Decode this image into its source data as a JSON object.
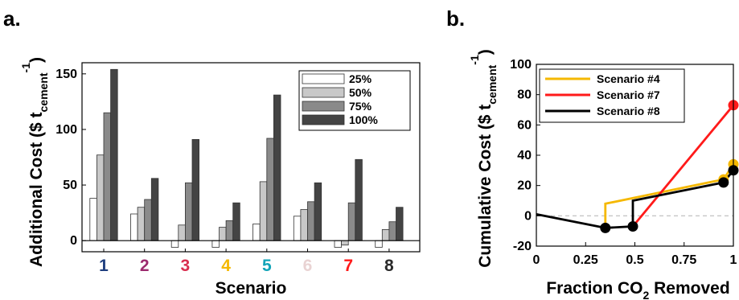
{
  "panels": {
    "a": {
      "letter": "a."
    },
    "b": {
      "letter": "b."
    }
  },
  "chart_data": [
    {
      "type": "bar",
      "panel": "a.",
      "ylabel": "Additional Cost ($ t",
      "ylabel_sub": "cement",
      "ylabel_sup": "-1",
      "ylabel_close": ")",
      "xlabel": "Scenario",
      "ylim": [
        -10,
        160
      ],
      "yticks": [
        0,
        50,
        100,
        150
      ],
      "grid": false,
      "legend_placement": "top-right",
      "categories": [
        "1",
        "2",
        "3",
        "4",
        "5",
        "6",
        "7",
        "8"
      ],
      "category_colors": [
        "#1f3f7f",
        "#9c2a6e",
        "#d92d4e",
        "#f5b800",
        "#12a4b8",
        "#e9d3d3",
        "#ff1a1a",
        "#2a2a2a"
      ],
      "series": [
        {
          "name": "25%",
          "color": "#ffffff",
          "values": [
            38,
            24,
            -6,
            -6,
            15,
            22,
            -6,
            -6
          ]
        },
        {
          "name": "50%",
          "color": "#c8c8c8",
          "values": [
            77,
            30,
            14,
            12,
            53,
            28,
            -4,
            10
          ]
        },
        {
          "name": "75%",
          "color": "#8a8a8a",
          "values": [
            115,
            37,
            52,
            18,
            92,
            35,
            34,
            17
          ]
        },
        {
          "name": "100%",
          "color": "#444444",
          "values": [
            154,
            56,
            91,
            34,
            131,
            52,
            73,
            30
          ]
        }
      ]
    },
    {
      "type": "line",
      "panel": "b.",
      "ylabel": "Cumulative Cost ($ t",
      "ylabel_sub": "cement",
      "ylabel_sup": "-1",
      "ylabel_close": ")",
      "xlabel": "Fraction CO",
      "xlabel_sub": "2",
      "xlabel_tail": " Removed",
      "xlim": [
        0,
        1
      ],
      "ylim": [
        -20,
        100
      ],
      "xticks": [
        0,
        0.25,
        0.5,
        0.75,
        1
      ],
      "xtick_labels": [
        "0",
        "0.25",
        "0.5",
        "0.75",
        "1"
      ],
      "yticks": [
        -20,
        0,
        20,
        40,
        60,
        80,
        100
      ],
      "grid": false,
      "zero_reference_line": true,
      "legend_placement": "top-left",
      "baseline": {
        "color": "#000000",
        "x": [
          0,
          0.35,
          0.49
        ],
        "y": [
          1,
          -8,
          -7
        ]
      },
      "series": [
        {
          "name": "Scenario #4",
          "color": "#f5b800",
          "x": [
            0.35,
            0.35,
            0.95,
            1.0
          ],
          "y": [
            -8,
            8,
            24,
            34
          ],
          "markers": [
            {
              "x": 0.95,
              "y": 24
            },
            {
              "x": 1.0,
              "y": 34
            }
          ]
        },
        {
          "name": "Scenario #7",
          "color": "#ff1a1a",
          "x": [
            0.49,
            1.0
          ],
          "y": [
            -7,
            73
          ],
          "markers": [
            {
              "x": 1.0,
              "y": 73
            }
          ]
        },
        {
          "name": "Scenario #8",
          "color": "#000000",
          "x": [
            0.49,
            0.49,
            0.95,
            1.0
          ],
          "y": [
            -7,
            10,
            22,
            30
          ],
          "markers": [
            {
              "x": 0.35,
              "y": -8
            },
            {
              "x": 0.49,
              "y": -7
            },
            {
              "x": 0.95,
              "y": 22
            },
            {
              "x": 1.0,
              "y": 30
            }
          ]
        }
      ]
    }
  ]
}
